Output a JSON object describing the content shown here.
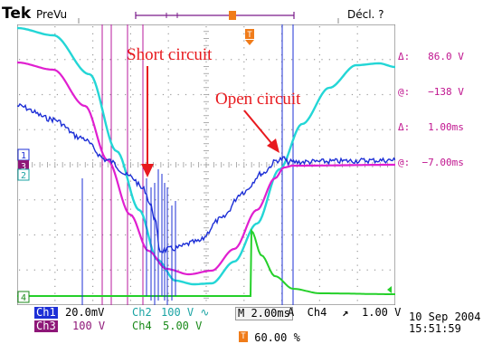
{
  "header": {
    "brand": "Tek",
    "mode": "PreVu",
    "trigger_status": "Décl. ?"
  },
  "cursor_readout": {
    "line1": "Δ:   86.0 V",
    "line2": "@:   −138 V",
    "line3": "Δ:   1.00ms",
    "line4": "@:  −7.00ms"
  },
  "annotations": {
    "short": "Short circuit",
    "open": "Open circuit"
  },
  "channel_markers": {
    "ch1": "1",
    "ch2": "2",
    "ch3": "3",
    "ch4": "4",
    "trigger": "T"
  },
  "settings": {
    "ch1_label": "Ch1",
    "ch1_scale": "20.0mV",
    "ch2_label": "Ch2",
    "ch2_scale": "100 V ∿",
    "ch3_label": "Ch3",
    "ch3_scale": "100 V",
    "ch4_label": "Ch4",
    "ch4_scale": "5.00 V",
    "timebase": "M 2.00ms",
    "trig_source": "A  Ch4",
    "trig_slope": "↗",
    "trig_level": "1.00 V",
    "trig_pos_icon": "T",
    "trig_pos": "60.00 %"
  },
  "timestamp": {
    "date": "10 Sep  2004",
    "time": "15:51:59"
  },
  "colors": {
    "ch1": "#1d2fd6",
    "ch2": "#23d6d6",
    "ch3": "#e01fd0",
    "ch4": "#25d02a",
    "cursor": "#8e1778",
    "annotation": "#e8191e",
    "trigger": "#f07c1a"
  }
}
